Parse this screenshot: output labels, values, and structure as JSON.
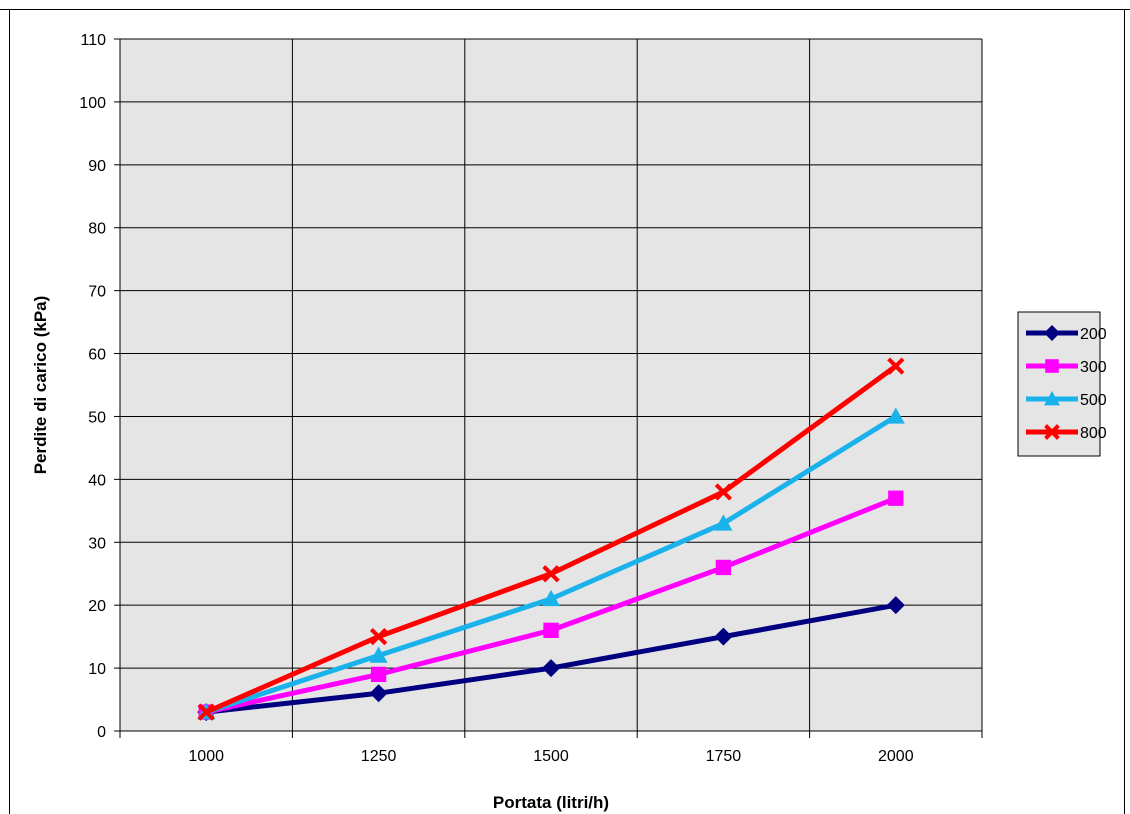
{
  "chart_data": {
    "type": "line",
    "title": "",
    "xlabel": "Portata (litri/h)",
    "ylabel": "Perdite di carico (kPa)",
    "categories": [
      "1000",
      "1250",
      "1500",
      "1750",
      "2000"
    ],
    "ylim": [
      0,
      110
    ],
    "yticks": [
      "0",
      "10",
      "20",
      "30",
      "40",
      "50",
      "60",
      "70",
      "80",
      "90",
      "100",
      "110"
    ],
    "grid": true,
    "legend_position": "right",
    "series": [
      {
        "name": "200",
        "values": [
          3,
          6,
          10,
          15,
          20
        ],
        "color": "#000080",
        "marker": "diamond"
      },
      {
        "name": "300",
        "values": [
          3,
          9,
          16,
          26,
          37
        ],
        "color": "#ff00ff",
        "marker": "square"
      },
      {
        "name": "500",
        "values": [
          3,
          12,
          21,
          33,
          50
        ],
        "color": "#1ab2ea",
        "marker": "triangle"
      },
      {
        "name": "800",
        "values": [
          3,
          15,
          25,
          38,
          58
        ],
        "color": "#ff0000",
        "marker": "x"
      }
    ]
  }
}
